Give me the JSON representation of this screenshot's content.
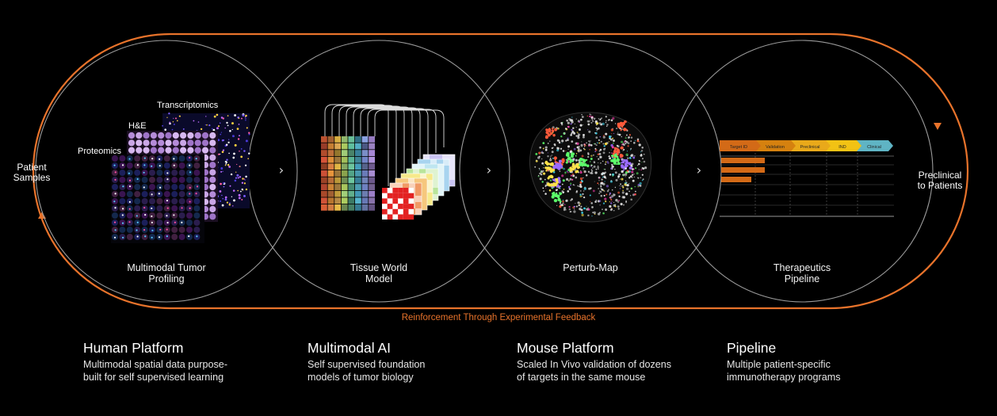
{
  "loop": {
    "left_label_line1": "Patient",
    "left_label_line2": "Samples",
    "right_label_line1": "Preclinical",
    "right_label_line2": "to Patients",
    "feedback": "Reinforcement Through Experimental Feedback",
    "accent_color": "#e8732b"
  },
  "stages": [
    {
      "title_line1": "Multimodal Tumor",
      "title_line2": "Profiling",
      "modalities": [
        "Transcriptomics",
        "H&E",
        "Proteomics"
      ]
    },
    {
      "title_line1": "Tissue World",
      "title_line2": "Model"
    },
    {
      "title_line1": "Perturb-Map",
      "title_line2": ""
    },
    {
      "title_line1": "Therapeutics",
      "title_line2": "Pipeline",
      "phases": [
        "Target ID",
        "Validation",
        "Preclinical",
        "IND",
        "Clinical"
      ]
    }
  ],
  "arrow_glyph": "›",
  "columns": [
    {
      "heading": "Human Platform",
      "line1": "Multimodal spatial data purpose-",
      "line2": "built for self supervised learning"
    },
    {
      "heading": "Multimodal AI",
      "line1": "Self supervised foundation",
      "line2": "models of tumor biology"
    },
    {
      "heading": "Mouse Platform",
      "line1": "Scaled In Vivo validation of dozens",
      "line2": "of targets in the same mouse"
    },
    {
      "heading": "Pipeline",
      "line1": "Multiple patient-specific",
      "line2": "immunotherapy programs"
    }
  ]
}
